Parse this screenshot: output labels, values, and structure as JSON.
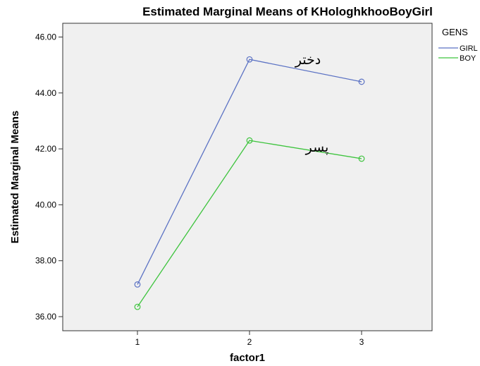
{
  "chart_data": {
    "type": "line",
    "title": "Estimated Marginal Means of KHologhkhooBoyGirl",
    "xlabel": "factor1",
    "ylabel": "Estimated Marginal Means",
    "categories": [
      "1",
      "2",
      "3"
    ],
    "ylim": [
      35.5,
      46.5
    ],
    "yticks": [
      "36.00",
      "38.00",
      "40.00",
      "42.00",
      "44.00",
      "46.00"
    ],
    "grid": false,
    "plot_background": "#f0f0f0",
    "legend": {
      "title": "GENS",
      "placement": "right"
    },
    "series": [
      {
        "name": "GIRL",
        "color": "#5b72c4",
        "values": [
          37.15,
          45.2,
          44.4
        ]
      },
      {
        "name": "BOY",
        "color": "#3ec43e",
        "values": [
          36.35,
          42.3,
          41.65
        ]
      }
    ],
    "annotations": [
      {
        "text": "دختر",
        "series": "GIRL"
      },
      {
        "text": "پسر",
        "series": "BOY"
      }
    ]
  }
}
